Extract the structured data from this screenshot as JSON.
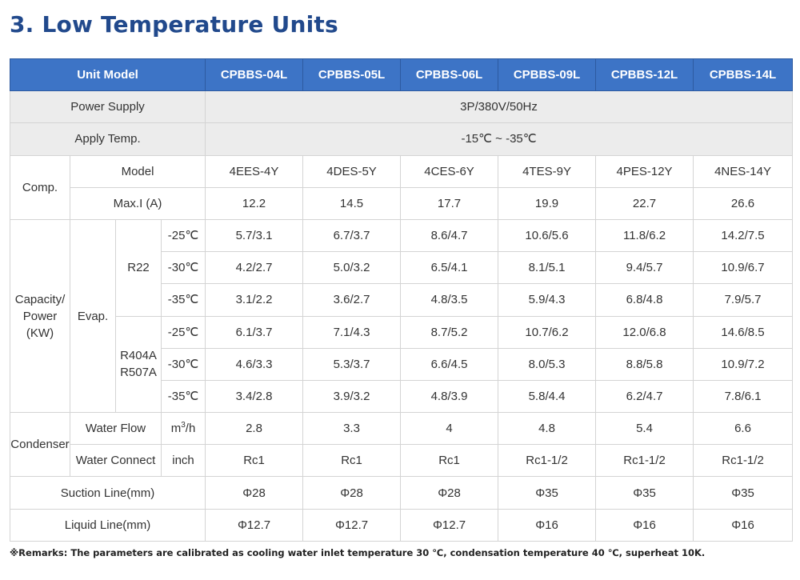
{
  "title": "3. Low Temperature Units",
  "header": {
    "label": "Unit Model",
    "models": [
      "CPBBS-04L",
      "CPBBS-05L",
      "CPBBS-06L",
      "CPBBS-09L",
      "CPBBS-12L",
      "CPBBS-14L"
    ]
  },
  "power_supply": {
    "label": "Power Supply",
    "value": "3P/380V/50Hz"
  },
  "apply_temp": {
    "label": "Apply Temp.",
    "value": "-15℃ ~ -35℃"
  },
  "comp": {
    "label": "Comp.",
    "model_label": "Model",
    "models": [
      "4EES-4Y",
      "4DES-5Y",
      "4CES-6Y",
      "4TES-9Y",
      "4PES-12Y",
      "4NES-14Y"
    ],
    "maxi_label": "Max.I (A)",
    "maxi": [
      "12.2",
      "14.5",
      "17.7",
      "19.9",
      "22.7",
      "26.6"
    ]
  },
  "capacity": {
    "label_line1": "Capacity/",
    "label_line2": "Power",
    "label_line3": "(KW)",
    "evap_label": "Evap.",
    "refrigerants": [
      {
        "name_line1": "R22",
        "name_line2": "",
        "rows": [
          {
            "temp": "-25℃",
            "values": [
              "5.7/3.1",
              "6.7/3.7",
              "8.6/4.7",
              "10.6/5.6",
              "11.8/6.2",
              "14.2/7.5"
            ]
          },
          {
            "temp": "-30℃",
            "values": [
              "4.2/2.7",
              "5.0/3.2",
              "6.5/4.1",
              "8.1/5.1",
              "9.4/5.7",
              "10.9/6.7"
            ]
          },
          {
            "temp": "-35℃",
            "values": [
              "3.1/2.2",
              "3.6/2.7",
              "4.8/3.5",
              "5.9/4.3",
              "6.8/4.8",
              "7.9/5.7"
            ]
          }
        ]
      },
      {
        "name_line1": "R404A",
        "name_line2": "R507A",
        "rows": [
          {
            "temp": "-25℃",
            "values": [
              "6.1/3.7",
              "7.1/4.3",
              "8.7/5.2",
              "10.7/6.2",
              "12.0/6.8",
              "14.6/8.5"
            ]
          },
          {
            "temp": "-30℃",
            "values": [
              "4.6/3.3",
              "5.3/3.7",
              "6.6/4.5",
              "8.0/5.3",
              "8.8/5.8",
              "10.9/7.2"
            ]
          },
          {
            "temp": "-35℃",
            "values": [
              "3.4/2.8",
              "3.9/3.2",
              "4.8/3.9",
              "5.8/4.4",
              "6.2/4.7",
              "7.8/6.1"
            ]
          }
        ]
      }
    ]
  },
  "condenser": {
    "label": "Condenser",
    "water_flow": {
      "label": "Water Flow",
      "unit_base": "m",
      "unit_sup": "3",
      "unit_rest": "/h",
      "values": [
        "2.8",
        "3.3",
        "4",
        "4.8",
        "5.4",
        "6.6"
      ]
    },
    "water_connect": {
      "label": "Water Connect",
      "unit": "inch",
      "values": [
        "Rc1",
        "Rc1",
        "Rc1",
        "Rc1-1/2",
        "Rc1-1/2",
        "Rc1-1/2"
      ]
    }
  },
  "suction_line": {
    "label": "Suction Line(mm)",
    "values": [
      "Φ28",
      "Φ28",
      "Φ28",
      "Φ35",
      "Φ35",
      "Φ35"
    ]
  },
  "liquid_line": {
    "label": "Liquid Line(mm)",
    "values": [
      "Φ12.7",
      "Φ12.7",
      "Φ12.7",
      "Φ16",
      "Φ16",
      "Φ16"
    ]
  },
  "remarks": "※Remarks: The parameters are calibrated as cooling water inlet temperature 30 ℃, condensation temperature 40 ℃, superheat 10K.",
  "colors": {
    "title": "#21498c",
    "header_bg": "#3d74c6",
    "grey_row": "#ececec",
    "border": "#d4d4d4"
  }
}
